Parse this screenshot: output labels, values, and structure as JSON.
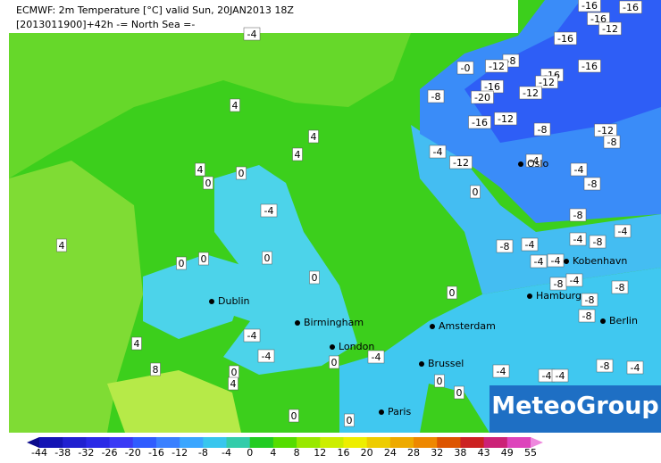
{
  "header": {
    "line1": "ECMWF: 2m Temperature [°C] valid Sun, 20JAN2013 18Z",
    "line2": "[2013011900]+42h -= North Sea =-"
  },
  "cities": [
    "Dublin",
    "Birmingham",
    "London",
    "Amsterdam",
    "Brussel",
    "Paris",
    "Hamburg",
    "Kobenhavn",
    "Berlin",
    "Oslo"
  ],
  "contour_labels": [
    "-16",
    "-16",
    "-16",
    "-12",
    "-16",
    "-4",
    "-8",
    "-12",
    "-0",
    "-16",
    "-16",
    "-12",
    "-16",
    "-8",
    "-20",
    "-12",
    "4",
    "-16",
    "-12",
    "-8",
    "-12",
    "-8",
    "4",
    "-4",
    "4",
    "-12",
    "-4",
    "4",
    "0",
    "0",
    "-4",
    "-8",
    "0",
    "-4",
    "-8",
    "4",
    "-8",
    "-4",
    "-4",
    "-8",
    "-4",
    "0",
    "0",
    "0",
    "-4",
    "-4",
    "0",
    "-8",
    "-4",
    "0",
    "-8",
    "-8",
    "-8",
    "-4",
    "4",
    "-4",
    "-4",
    "0",
    "8",
    "0",
    "-4",
    "-4",
    "-4",
    "-8",
    "-4",
    "4",
    "0",
    "0",
    "0",
    "0"
  ],
  "logo": "MeteoGroup",
  "colorbar": {
    "ticks": [
      -44,
      -38,
      -32,
      -26,
      -20,
      -16,
      -12,
      -8,
      -4,
      0,
      4,
      8,
      12,
      16,
      20,
      24,
      28,
      32,
      38,
      43,
      49,
      55
    ],
    "colors": [
      "#0a0a8c",
      "#1414b4",
      "#2020d0",
      "#2a2ae6",
      "#3a3af5",
      "#2f5cff",
      "#3a80ff",
      "#3aa6ff",
      "#38c6ee",
      "#33ccaa",
      "#22cc22",
      "#55dd00",
      "#99e800",
      "#ccee00",
      "#eeee00",
      "#eecc00",
      "#eeaa00",
      "#ee8800",
      "#dd5500",
      "#cc2222",
      "#cc2277",
      "#dd44bb",
      "#ee88dd"
    ]
  }
}
